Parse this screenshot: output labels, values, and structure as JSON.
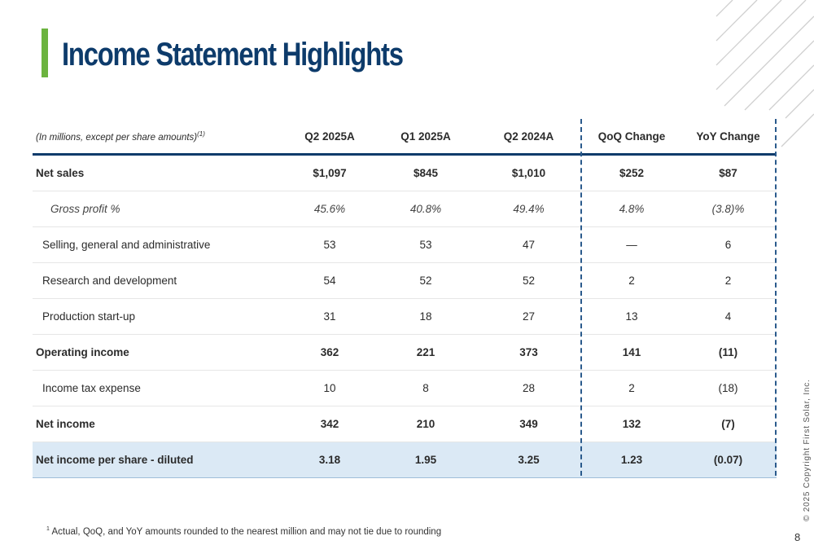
{
  "slide": {
    "title": "Income Statement Highlights",
    "page_number": "8",
    "copyright": "© 2025 Copyright First Solar, Inc.",
    "footnote_marker": "1",
    "footnote": "Actual, QoQ, and YoY amounts rounded to the nearest million and may not tie due to rounding"
  },
  "table": {
    "label_header": "(In millions, except per share amounts)",
    "label_header_sup": "(1)",
    "columns": [
      "Q2 2025A",
      "Q1 2025A",
      "Q2 2024A",
      "QoQ Change",
      "YoY Change"
    ],
    "rows": [
      {
        "label": "Net sales",
        "cells": [
          "$1,097",
          "$845",
          "$1,010",
          "$252",
          "$87"
        ]
      },
      {
        "label": "Gross profit %",
        "cells": [
          "45.6%",
          "40.8%",
          "49.4%",
          "4.8%",
          "(3.8)%"
        ]
      },
      {
        "label": "Selling, general and administrative",
        "cells": [
          "53",
          "53",
          "47",
          "—",
          "6"
        ]
      },
      {
        "label": "Research and development",
        "cells": [
          "54",
          "52",
          "52",
          "2",
          "2"
        ]
      },
      {
        "label": "Production start-up",
        "cells": [
          "31",
          "18",
          "27",
          "13",
          "4"
        ]
      },
      {
        "label": "Operating income",
        "cells": [
          "362",
          "221",
          "373",
          "141",
          "(11)"
        ]
      },
      {
        "label": "Income tax expense",
        "cells": [
          "10",
          "8",
          "28",
          "2",
          "(18)"
        ]
      },
      {
        "label": "Net income",
        "cells": [
          "342",
          "210",
          "349",
          "132",
          "(7)"
        ]
      },
      {
        "label": "Net income per share - diluted",
        "cells": [
          "3.18",
          "1.95",
          "3.25",
          "1.23",
          "(0.07)"
        ]
      }
    ]
  },
  "colors": {
    "accent": "#6cb33f",
    "title": "#0d3b6b",
    "highlight_row": "#dbe9f5"
  }
}
